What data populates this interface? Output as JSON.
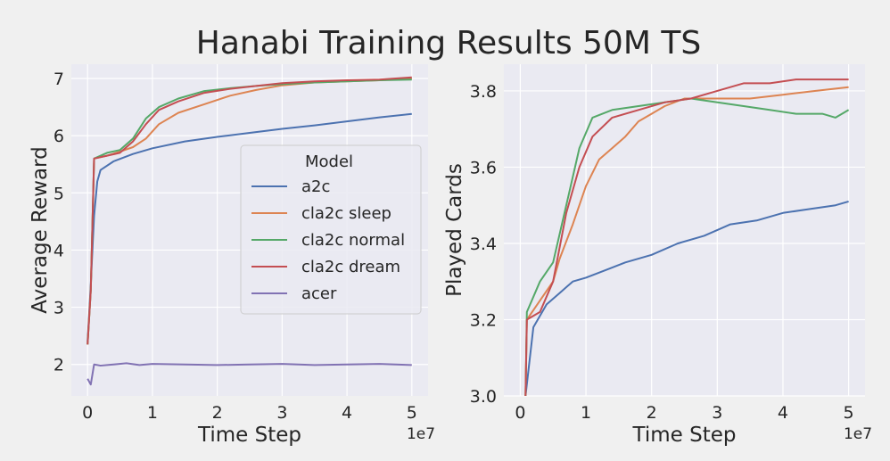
{
  "figure": {
    "title": "Hanabi Training Results 50M TS"
  },
  "colors": {
    "panel": "#EAEAF2",
    "frame": "#F0F0F0",
    "grid": "#FFFFFF",
    "a2c": "#4C72B0",
    "cla2c_sleep": "#DD8452",
    "cla2c_normal": "#55A868",
    "cla2c_dream": "#C44E52",
    "acer": "#8172B3"
  },
  "chart_data": [
    {
      "type": "line",
      "xlabel": "Time Step",
      "ylabel": "Average Reward",
      "x_multiplier": "1e7",
      "xlim": [
        -0.25,
        5.25
      ],
      "ylim": [
        1.45,
        7.25
      ],
      "xticks": [
        "0",
        "1",
        "2",
        "3",
        "4",
        "5"
      ],
      "yticks": [
        "2",
        "3",
        "4",
        "5",
        "6",
        "7"
      ],
      "grid": true,
      "legend": {
        "title": "Model",
        "placement": "center-right",
        "entries": [
          "a2c",
          "cla2c sleep",
          "cla2c normal",
          "cla2c dream",
          "acer"
        ]
      },
      "series": [
        {
          "name": "a2c",
          "color_key": "a2c",
          "points": [
            [
              0.0,
              2.4
            ],
            [
              0.05,
              3.4
            ],
            [
              0.1,
              4.6
            ],
            [
              0.15,
              5.2
            ],
            [
              0.2,
              5.4
            ],
            [
              0.4,
              5.55
            ],
            [
              0.7,
              5.68
            ],
            [
              1.0,
              5.78
            ],
            [
              1.5,
              5.9
            ],
            [
              2.0,
              5.98
            ],
            [
              2.5,
              6.05
            ],
            [
              3.0,
              6.12
            ],
            [
              3.5,
              6.18
            ],
            [
              4.0,
              6.25
            ],
            [
              4.5,
              6.32
            ],
            [
              5.0,
              6.38
            ]
          ]
        },
        {
          "name": "cla2c sleep",
          "color_key": "cla2c_sleep",
          "points": [
            [
              0.0,
              2.35
            ],
            [
              0.05,
              3.3
            ],
            [
              0.1,
              5.6
            ],
            [
              0.3,
              5.65
            ],
            [
              0.5,
              5.72
            ],
            [
              0.7,
              5.8
            ],
            [
              0.9,
              5.95
            ],
            [
              1.1,
              6.2
            ],
            [
              1.4,
              6.4
            ],
            [
              1.8,
              6.55
            ],
            [
              2.2,
              6.7
            ],
            [
              2.6,
              6.8
            ],
            [
              3.0,
              6.88
            ],
            [
              3.5,
              6.93
            ],
            [
              4.0,
              6.95
            ],
            [
              4.5,
              6.97
            ],
            [
              5.0,
              7.0
            ]
          ]
        },
        {
          "name": "cla2c normal",
          "color_key": "cla2c_normal",
          "points": [
            [
              0.0,
              2.35
            ],
            [
              0.05,
              3.3
            ],
            [
              0.1,
              5.6
            ],
            [
              0.3,
              5.7
            ],
            [
              0.5,
              5.75
            ],
            [
              0.7,
              5.95
            ],
            [
              0.9,
              6.3
            ],
            [
              1.1,
              6.5
            ],
            [
              1.4,
              6.65
            ],
            [
              1.8,
              6.78
            ],
            [
              2.2,
              6.83
            ],
            [
              2.6,
              6.87
            ],
            [
              3.0,
              6.9
            ],
            [
              3.5,
              6.93
            ],
            [
              4.0,
              6.95
            ],
            [
              4.5,
              6.97
            ],
            [
              5.0,
              6.98
            ]
          ]
        },
        {
          "name": "cla2c dream",
          "color_key": "cla2c_dream",
          "points": [
            [
              0.0,
              2.35
            ],
            [
              0.05,
              3.3
            ],
            [
              0.1,
              5.6
            ],
            [
              0.3,
              5.65
            ],
            [
              0.5,
              5.7
            ],
            [
              0.7,
              5.9
            ],
            [
              0.9,
              6.2
            ],
            [
              1.1,
              6.45
            ],
            [
              1.4,
              6.6
            ],
            [
              1.8,
              6.75
            ],
            [
              2.2,
              6.82
            ],
            [
              2.6,
              6.87
            ],
            [
              3.0,
              6.92
            ],
            [
              3.5,
              6.95
            ],
            [
              4.0,
              6.97
            ],
            [
              4.5,
              6.98
            ],
            [
              5.0,
              7.02
            ]
          ]
        },
        {
          "name": "acer",
          "color_key": "acer",
          "points": [
            [
              0.0,
              1.75
            ],
            [
              0.05,
              1.65
            ],
            [
              0.1,
              2.0
            ],
            [
              0.2,
              1.98
            ],
            [
              0.4,
              2.0
            ],
            [
              0.6,
              2.02
            ],
            [
              0.8,
              1.99
            ],
            [
              1.0,
              2.01
            ],
            [
              1.5,
              2.0
            ],
            [
              2.0,
              1.99
            ],
            [
              2.5,
              2.0
            ],
            [
              3.0,
              2.01
            ],
            [
              3.5,
              1.99
            ],
            [
              4.0,
              2.0
            ],
            [
              4.5,
              2.01
            ],
            [
              5.0,
              1.99
            ]
          ]
        }
      ]
    },
    {
      "type": "line",
      "xlabel": "Time Step",
      "ylabel": "Played Cards",
      "x_multiplier": "1e7",
      "xlim": [
        -0.25,
        5.25
      ],
      "ylim": [
        3.0,
        3.87
      ],
      "xticks": [
        "0",
        "1",
        "2",
        "3",
        "4",
        "5"
      ],
      "yticks": [
        "3.0",
        "3.2",
        "3.4",
        "3.6",
        "3.8"
      ],
      "grid": true,
      "series": [
        {
          "name": "a2c",
          "color_key": "a2c",
          "points": [
            [
              0.08,
              3.0
            ],
            [
              0.2,
              3.18
            ],
            [
              0.4,
              3.24
            ],
            [
              0.6,
              3.27
            ],
            [
              0.8,
              3.3
            ],
            [
              1.0,
              3.31
            ],
            [
              1.3,
              3.33
            ],
            [
              1.6,
              3.35
            ],
            [
              2.0,
              3.37
            ],
            [
              2.4,
              3.4
            ],
            [
              2.8,
              3.42
            ],
            [
              3.2,
              3.45
            ],
            [
              3.6,
              3.46
            ],
            [
              4.0,
              3.48
            ],
            [
              4.4,
              3.49
            ],
            [
              4.8,
              3.5
            ],
            [
              5.0,
              3.51
            ]
          ]
        },
        {
          "name": "cla2c sleep",
          "color_key": "cla2c_sleep",
          "points": [
            [
              0.08,
              3.0
            ],
            [
              0.1,
              3.2
            ],
            [
              0.3,
              3.25
            ],
            [
              0.5,
              3.3
            ],
            [
              0.6,
              3.36
            ],
            [
              0.8,
              3.45
            ],
            [
              1.0,
              3.55
            ],
            [
              1.2,
              3.62
            ],
            [
              1.4,
              3.65
            ],
            [
              1.6,
              3.68
            ],
            [
              1.8,
              3.72
            ],
            [
              2.0,
              3.74
            ],
            [
              2.2,
              3.76
            ],
            [
              2.5,
              3.78
            ],
            [
              3.0,
              3.78
            ],
            [
              3.5,
              3.78
            ],
            [
              4.0,
              3.79
            ],
            [
              4.5,
              3.8
            ],
            [
              5.0,
              3.81
            ]
          ]
        },
        {
          "name": "cla2c normal",
          "color_key": "cla2c_normal",
          "points": [
            [
              0.08,
              3.0
            ],
            [
              0.1,
              3.22
            ],
            [
              0.3,
              3.3
            ],
            [
              0.5,
              3.35
            ],
            [
              0.7,
              3.5
            ],
            [
              0.9,
              3.65
            ],
            [
              1.1,
              3.73
            ],
            [
              1.4,
              3.75
            ],
            [
              1.8,
              3.76
            ],
            [
              2.2,
              3.77
            ],
            [
              2.6,
              3.78
            ],
            [
              3.0,
              3.77
            ],
            [
              3.4,
              3.76
            ],
            [
              3.8,
              3.75
            ],
            [
              4.2,
              3.74
            ],
            [
              4.6,
              3.74
            ],
            [
              4.8,
              3.73
            ],
            [
              5.0,
              3.75
            ]
          ]
        },
        {
          "name": "cla2c dream",
          "color_key": "cla2c_dream",
          "points": [
            [
              0.08,
              3.0
            ],
            [
              0.1,
              3.2
            ],
            [
              0.3,
              3.22
            ],
            [
              0.5,
              3.3
            ],
            [
              0.7,
              3.48
            ],
            [
              0.9,
              3.6
            ],
            [
              1.1,
              3.68
            ],
            [
              1.4,
              3.73
            ],
            [
              1.8,
              3.75
            ],
            [
              2.2,
              3.77
            ],
            [
              2.6,
              3.78
            ],
            [
              3.0,
              3.8
            ],
            [
              3.4,
              3.82
            ],
            [
              3.8,
              3.82
            ],
            [
              4.2,
              3.83
            ],
            [
              4.6,
              3.83
            ],
            [
              5.0,
              3.83
            ]
          ]
        }
      ]
    }
  ]
}
